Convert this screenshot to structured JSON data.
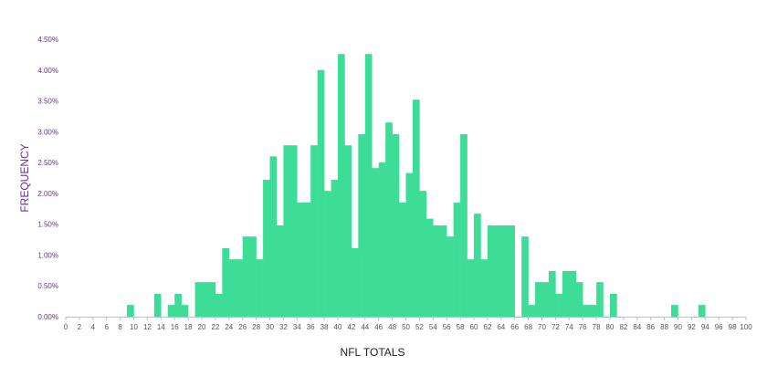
{
  "chart_data": {
    "type": "bar",
    "title": "",
    "xlabel": "NFL TOTALS",
    "ylabel": "FREQUENCY",
    "bar_color": "#3ddc97",
    "axis_color": "#bfbfbf",
    "ylim": [
      0,
      4.5
    ],
    "xlim": [
      0,
      100
    ],
    "grid": false,
    "legend": "none",
    "y_ticks": [
      "0.00%",
      "0.50%",
      "1.00%",
      "1.50%",
      "2.00%",
      "2.50%",
      "3.00%",
      "3.50%",
      "4.00%",
      "4.50%"
    ],
    "x_ticks": [
      "0",
      "2",
      "4",
      "6",
      "8",
      "10",
      "12",
      "14",
      "16",
      "18",
      "20",
      "22",
      "24",
      "26",
      "28",
      "30",
      "32",
      "34",
      "36",
      "38",
      "40",
      "42",
      "44",
      "46",
      "48",
      "50",
      "52",
      "54",
      "56",
      "58",
      "60",
      "62",
      "64",
      "66",
      "68",
      "70",
      "72",
      "74",
      "76",
      "78",
      "80",
      "82",
      "84",
      "86",
      "88",
      "90",
      "92",
      "94",
      "96",
      "98",
      "100"
    ],
    "x": [
      0,
      1,
      2,
      3,
      4,
      5,
      6,
      7,
      8,
      9,
      10,
      11,
      12,
      13,
      14,
      15,
      16,
      17,
      18,
      19,
      20,
      21,
      22,
      23,
      24,
      25,
      26,
      27,
      28,
      29,
      30,
      31,
      32,
      33,
      34,
      35,
      36,
      37,
      38,
      39,
      40,
      41,
      42,
      43,
      44,
      45,
      46,
      47,
      48,
      49,
      50,
      51,
      52,
      53,
      54,
      55,
      56,
      57,
      58,
      59,
      60,
      61,
      62,
      63,
      64,
      65,
      66,
      67,
      68,
      69,
      70,
      71,
      72,
      73,
      74,
      75,
      76,
      77,
      78,
      79,
      80,
      81,
      82,
      83,
      84,
      85,
      86,
      87,
      88,
      89,
      90,
      91,
      92,
      93,
      94,
      95,
      96,
      97,
      98,
      99
    ],
    "values": [
      0,
      0,
      0,
      0,
      0,
      0,
      0,
      0,
      0,
      0.19,
      0,
      0,
      0,
      0.37,
      0,
      0.19,
      0.37,
      0.19,
      0,
      0.56,
      0.56,
      0.56,
      0.37,
      1.11,
      0.93,
      0.93,
      1.3,
      1.3,
      0.93,
      2.22,
      2.6,
      1.48,
      2.78,
      2.78,
      1.85,
      1.85,
      2.78,
      4.0,
      2.04,
      2.22,
      4.26,
      2.78,
      1.11,
      2.96,
      4.26,
      2.41,
      2.5,
      3.15,
      2.96,
      1.85,
      2.33,
      3.52,
      2.04,
      1.59,
      1.48,
      1.48,
      1.3,
      1.85,
      2.96,
      0.93,
      1.67,
      0.93,
      1.48,
      1.48,
      1.48,
      1.48,
      0,
      1.3,
      0.19,
      0.56,
      0.56,
      0.74,
      0.37,
      0.74,
      0.74,
      0.56,
      0.19,
      0.19,
      0.56,
      0,
      0.37,
      0,
      0,
      0,
      0,
      0,
      0,
      0,
      0,
      0.19,
      0,
      0,
      0,
      0.19,
      0,
      0,
      0,
      0,
      0,
      0
    ]
  }
}
